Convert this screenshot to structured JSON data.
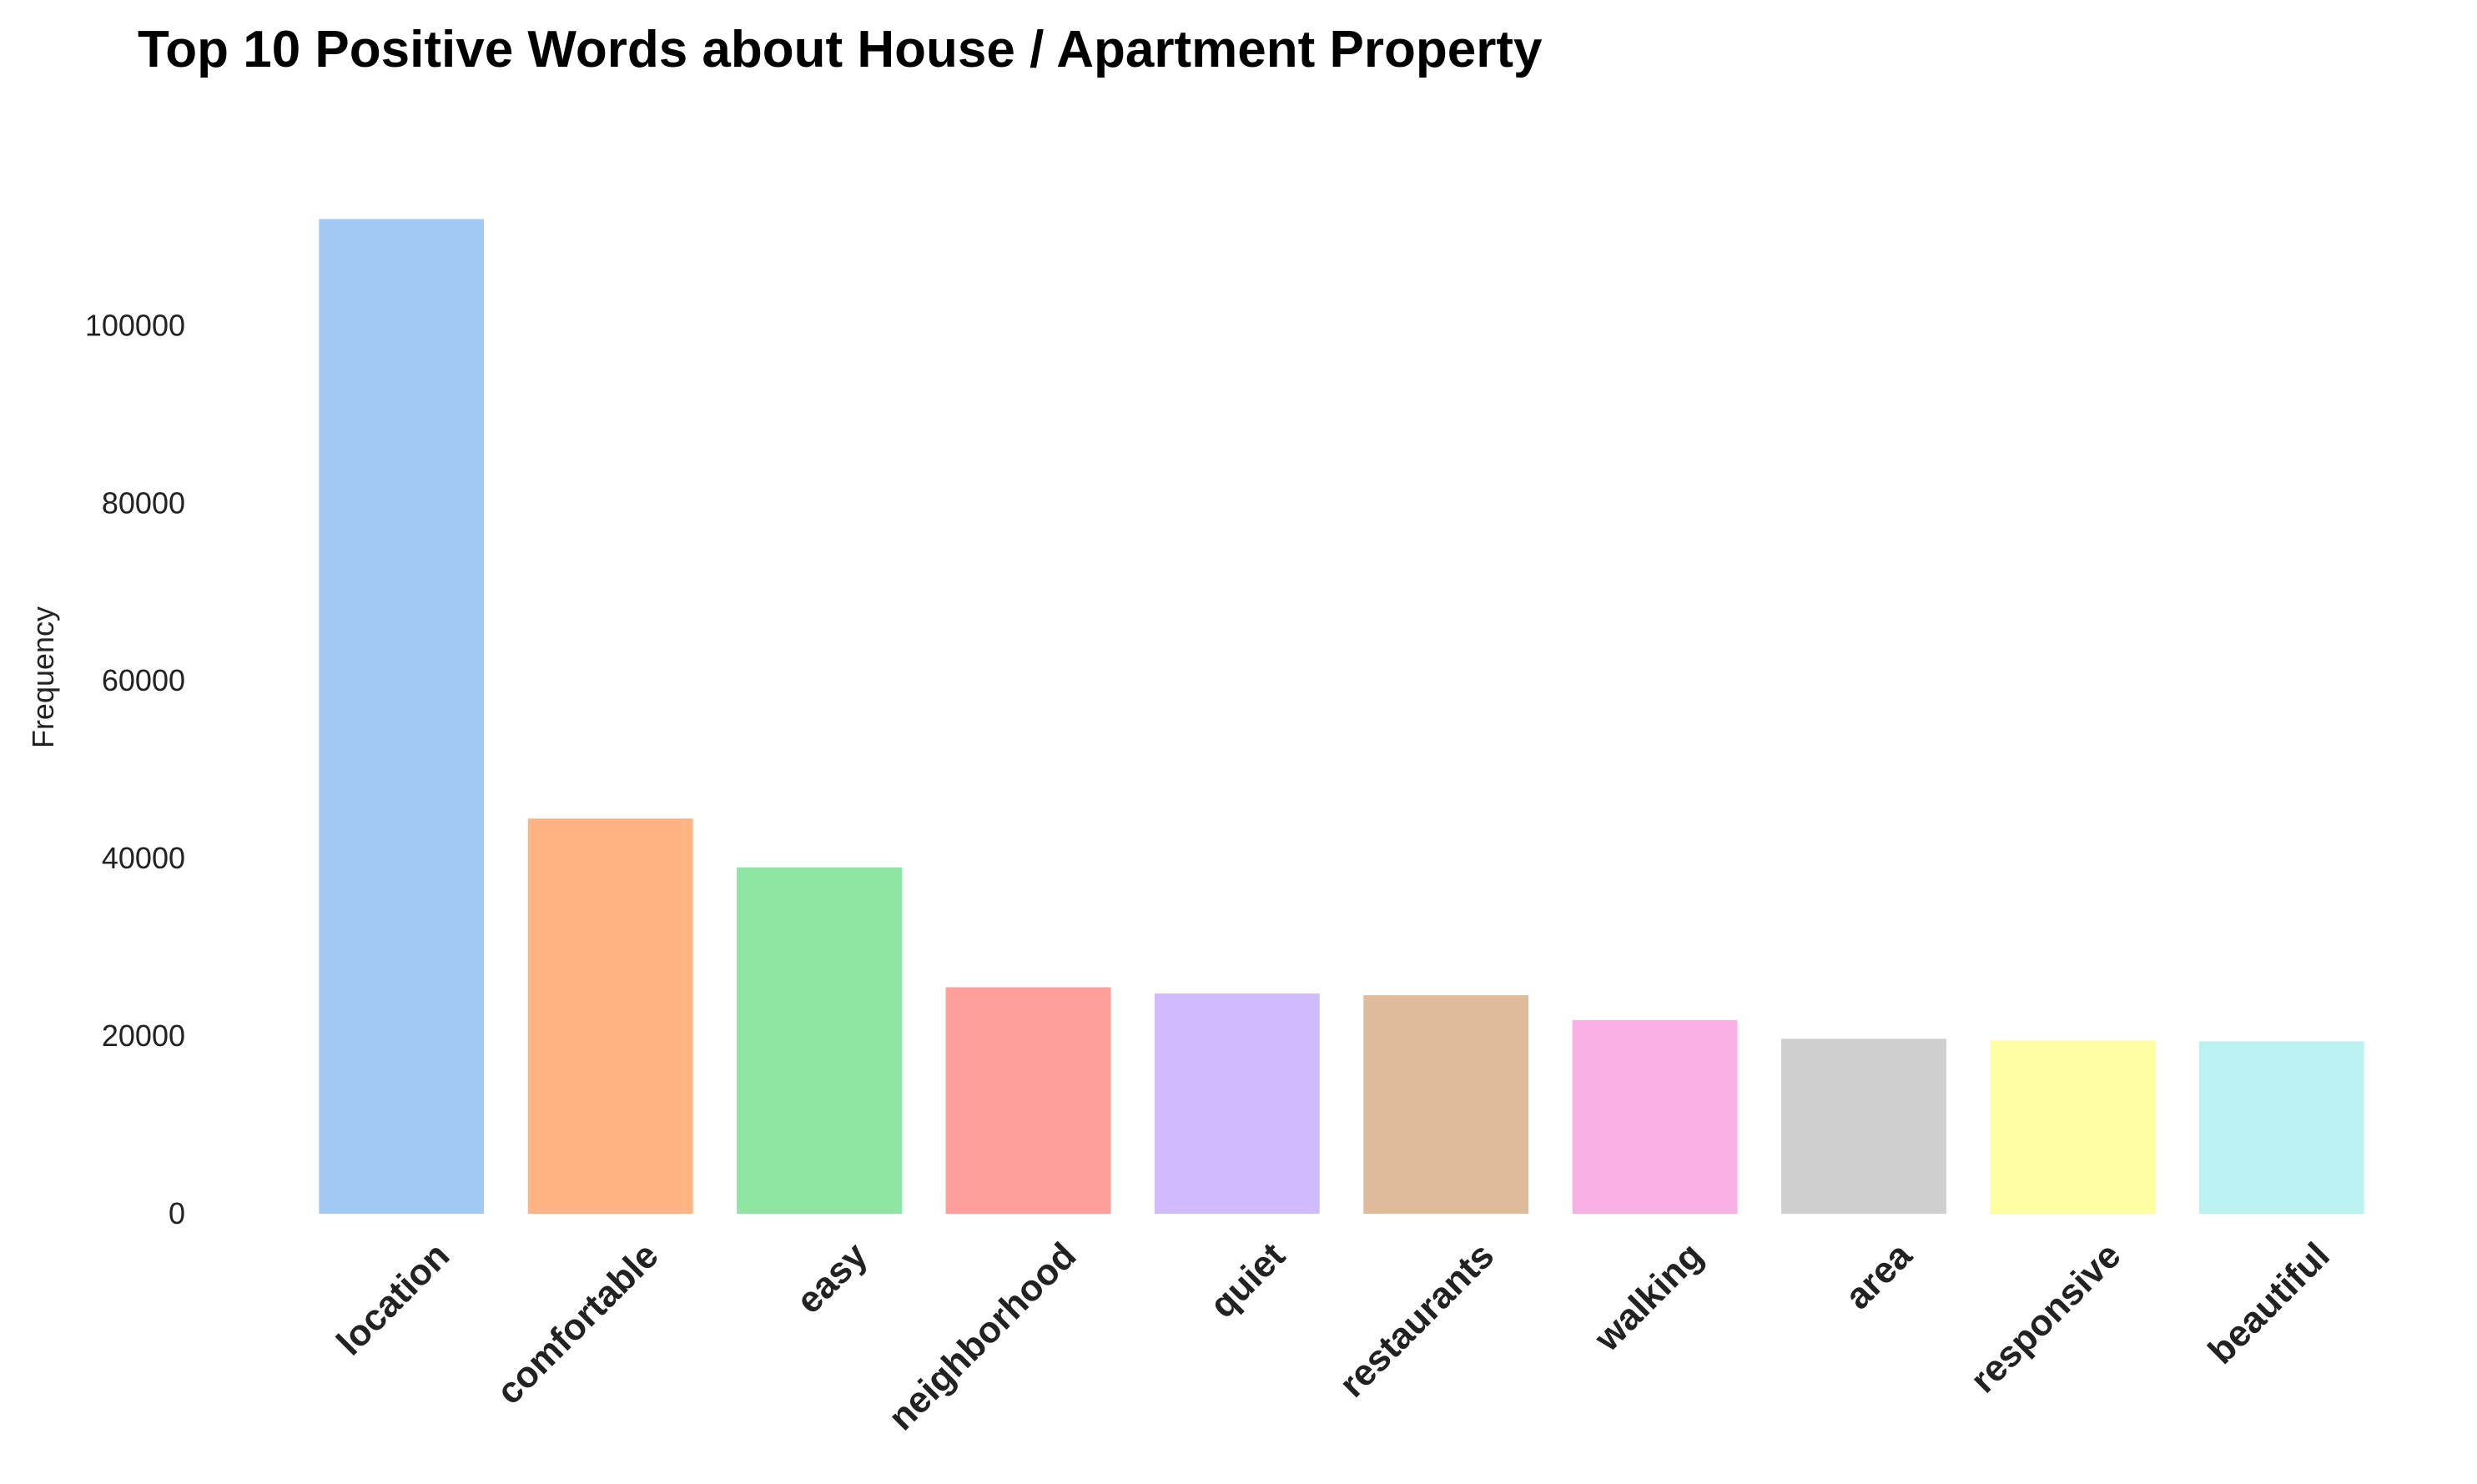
{
  "chart_data": {
    "type": "bar",
    "title": "Top 10 Positive Words about House / Apartment Property",
    "xlabel": "",
    "ylabel": "Frequency",
    "categories": [
      "location",
      "comfortable",
      "easy",
      "neighborhood",
      "quiet",
      "restaurants",
      "walking",
      "area",
      "responsive",
      "beautiful"
    ],
    "values": [
      112000,
      44500,
      39000,
      25500,
      24800,
      24600,
      21800,
      19700,
      19500,
      19400
    ],
    "colors": [
      "#a1c9f4",
      "#ffb482",
      "#8de5a1",
      "#ff9f9b",
      "#d0bbff",
      "#debb9b",
      "#fab0e4",
      "#cfcfcf",
      "#fffea3",
      "#b9f2f0"
    ],
    "yticks": [
      0,
      20000,
      40000,
      60000,
      80000,
      100000
    ],
    "ytick_labels": [
      "0",
      "20000",
      "40000",
      "60000",
      "80000",
      "100000"
    ],
    "ylim": [
      0,
      117600
    ],
    "grid": false,
    "legend": "none"
  }
}
